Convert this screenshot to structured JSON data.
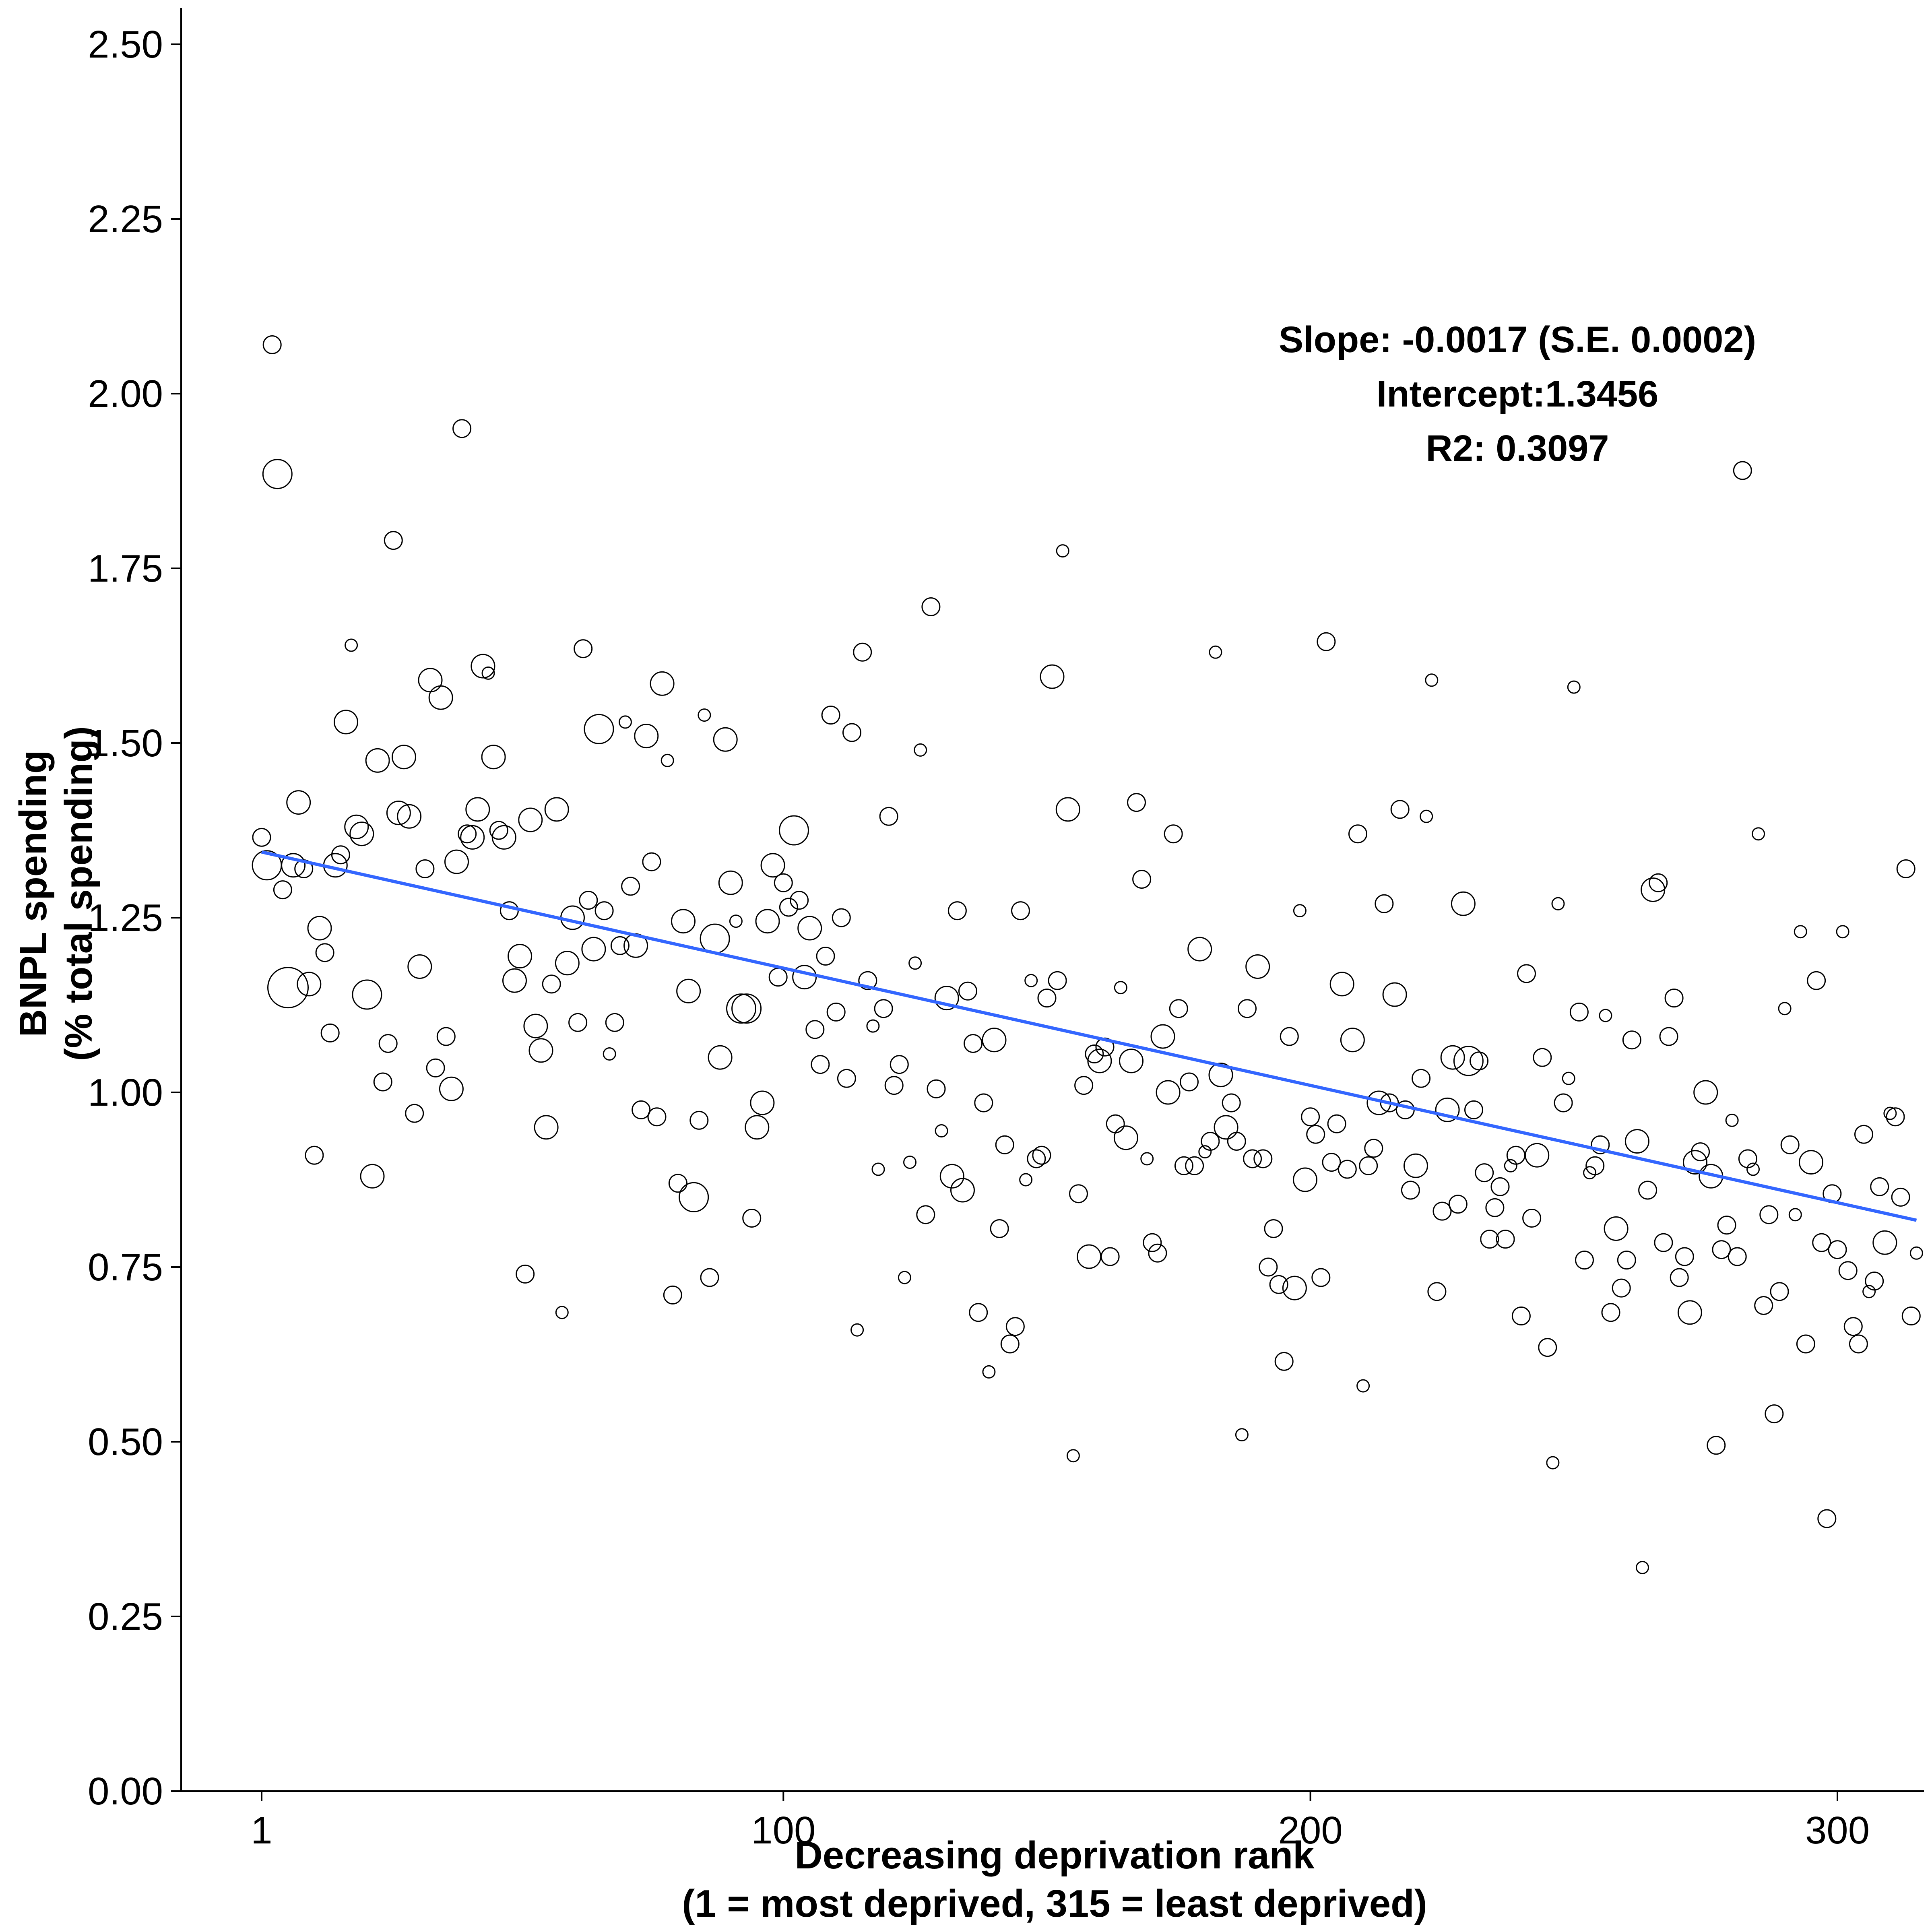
{
  "chart_data": {
    "type": "scatter",
    "title": "",
    "xlabel_lines": [
      "Decreasing deprivation rank",
      "(1 = most deprived, 315 = least deprived)"
    ],
    "ylabel_lines": [
      "BNPL spending",
      "(% total spending)"
    ],
    "xlim": [
      -15,
      330
    ],
    "ylim": [
      0,
      2.55
    ],
    "x_ticks": [
      1,
      100,
      200,
      300
    ],
    "x_tick_labels": [
      "1",
      "100",
      "200",
      "300"
    ],
    "y_ticks": [
      0,
      0.25,
      0.5,
      0.75,
      1.0,
      1.25,
      1.5,
      1.75,
      2.0,
      2.25,
      2.5
    ],
    "y_tick_labels": [
      "0.00",
      "0.25",
      "0.50",
      "0.75",
      "1.00",
      "1.25",
      "1.50",
      "1.75",
      "2.00",
      "2.25",
      "2.50"
    ],
    "grid": false,
    "legend": "none",
    "annotations": [
      "Slope: -0.0017 (S.E. 0.0002)",
      "Intercept:1.3456",
      "R2: 0.3097"
    ],
    "fit_line": {
      "x": [
        1,
        315
      ],
      "y": [
        1.344,
        0.817
      ],
      "color": "#3366FF"
    },
    "marker": {
      "fill": "none",
      "stroke": "#000000"
    },
    "points": [
      [
        1,
        1.365,
        2
      ],
      [
        2,
        1.325,
        4
      ],
      [
        3,
        2.07,
        2
      ],
      [
        4,
        1.885,
        4
      ],
      [
        5,
        1.29,
        2
      ],
      [
        6,
        1.15,
        6
      ],
      [
        7,
        1.325,
        3
      ],
      [
        8,
        1.415,
        3
      ],
      [
        9,
        1.32,
        2
      ],
      [
        10,
        1.155,
        3
      ],
      [
        11,
        0.91,
        2
      ],
      [
        12,
        1.235,
        3
      ],
      [
        13,
        1.2,
        2
      ],
      [
        14,
        1.085,
        2
      ],
      [
        15,
        1.325,
        3
      ],
      [
        16,
        1.34,
        2
      ],
      [
        17,
        1.53,
        3
      ],
      [
        18,
        1.64,
        1
      ],
      [
        19,
        1.38,
        3
      ],
      [
        20,
        1.37,
        3
      ],
      [
        21,
        1.14,
        4
      ],
      [
        22,
        0.88,
        3
      ],
      [
        23,
        1.475,
        3
      ],
      [
        24,
        1.015,
        2
      ],
      [
        25,
        1.07,
        2
      ],
      [
        26,
        1.79,
        2
      ],
      [
        27,
        1.4,
        3
      ],
      [
        28,
        1.48,
        3
      ],
      [
        29,
        1.395,
        3
      ],
      [
        30,
        0.97,
        2
      ],
      [
        31,
        1.18,
        3
      ],
      [
        32,
        1.32,
        2
      ],
      [
        33,
        1.59,
        3
      ],
      [
        34,
        1.035,
        2
      ],
      [
        35,
        1.565,
        3
      ],
      [
        36,
        1.08,
        2
      ],
      [
        37,
        1.005,
        3
      ],
      [
        38,
        1.33,
        3
      ],
      [
        39,
        1.95,
        2
      ],
      [
        40,
        1.37,
        2
      ],
      [
        41,
        1.365,
        3
      ],
      [
        42,
        1.405,
        3
      ],
      [
        43,
        1.61,
        3
      ],
      [
        44,
        1.6,
        1
      ],
      [
        45,
        1.48,
        3
      ],
      [
        46,
        1.375,
        2
      ],
      [
        47,
        1.365,
        3
      ],
      [
        48,
        1.26,
        2
      ],
      [
        49,
        1.16,
        3
      ],
      [
        50,
        1.195,
        3
      ],
      [
        51,
        0.74,
        2
      ],
      [
        52,
        1.39,
        3
      ],
      [
        53,
        1.095,
        3
      ],
      [
        54,
        1.06,
        3
      ],
      [
        55,
        0.95,
        3
      ],
      [
        56,
        1.155,
        2
      ],
      [
        57,
        1.405,
        3
      ],
      [
        58,
        0.685,
        1
      ],
      [
        59,
        1.185,
        3
      ],
      [
        60,
        1.25,
        3
      ],
      [
        61,
        1.1,
        2
      ],
      [
        62,
        1.635,
        2
      ],
      [
        63,
        1.275,
        2
      ],
      [
        64,
        1.205,
        3
      ],
      [
        65,
        1.52,
        4
      ],
      [
        66,
        1.26,
        2
      ],
      [
        67,
        1.055,
        1
      ],
      [
        68,
        1.1,
        2
      ],
      [
        69,
        1.21,
        2
      ],
      [
        70,
        1.53,
        1
      ],
      [
        71,
        1.295,
        2
      ],
      [
        72,
        1.21,
        3
      ],
      [
        73,
        0.975,
        2
      ],
      [
        74,
        1.51,
        3
      ],
      [
        75,
        1.33,
        2
      ],
      [
        76,
        0.965,
        2
      ],
      [
        77,
        1.585,
        3
      ],
      [
        78,
        1.475,
        1
      ],
      [
        79,
        0.71,
        2
      ],
      [
        80,
        0.87,
        2
      ],
      [
        81,
        1.245,
        3
      ],
      [
        82,
        1.145,
        3
      ],
      [
        83,
        0.85,
        4
      ],
      [
        84,
        0.96,
        2
      ],
      [
        85,
        1.54,
        1
      ],
      [
        86,
        0.735,
        2
      ],
      [
        87,
        1.22,
        4
      ],
      [
        88,
        1.05,
        3
      ],
      [
        89,
        1.505,
        3
      ],
      [
        90,
        1.3,
        3
      ],
      [
        91,
        1.245,
        1
      ],
      [
        92,
        1.12,
        4
      ],
      [
        93,
        1.12,
        4
      ],
      [
        94,
        0.82,
        2
      ],
      [
        95,
        0.95,
        3
      ],
      [
        96,
        0.985,
        3
      ],
      [
        97,
        1.245,
        3
      ],
      [
        98,
        1.325,
        3
      ],
      [
        99,
        1.165,
        2
      ],
      [
        100,
        1.3,
        2
      ],
      [
        101,
        1.265,
        2
      ],
      [
        102,
        1.375,
        4
      ],
      [
        103,
        1.275,
        2
      ],
      [
        104,
        1.165,
        3
      ],
      [
        105,
        1.235,
        3
      ],
      [
        106,
        1.09,
        2
      ],
      [
        107,
        1.04,
        2
      ],
      [
        108,
        1.195,
        2
      ],
      [
        109,
        1.54,
        2
      ],
      [
        110,
        1.115,
        2
      ],
      [
        111,
        1.25,
        2
      ],
      [
        112,
        1.02,
        2
      ],
      [
        113,
        1.515,
        2
      ],
      [
        114,
        0.66,
        1
      ],
      [
        115,
        1.63,
        2
      ],
      [
        116,
        1.16,
        2
      ],
      [
        117,
        1.095,
        1
      ],
      [
        118,
        0.89,
        1
      ],
      [
        119,
        1.12,
        2
      ],
      [
        120,
        1.395,
        2
      ],
      [
        121,
        1.01,
        2
      ],
      [
        122,
        1.04,
        2
      ],
      [
        123,
        0.735,
        1
      ],
      [
        124,
        0.9,
        1
      ],
      [
        125,
        1.185,
        1
      ],
      [
        126,
        1.49,
        1
      ],
      [
        127,
        0.825,
        2
      ],
      [
        128,
        1.695,
        2
      ],
      [
        129,
        1.005,
        2
      ],
      [
        130,
        0.945,
        1
      ],
      [
        131,
        1.135,
        3
      ],
      [
        132,
        0.88,
        3
      ],
      [
        133,
        1.26,
        2
      ],
      [
        134,
        0.86,
        3
      ],
      [
        135,
        1.145,
        2
      ],
      [
        136,
        1.07,
        2
      ],
      [
        137,
        0.685,
        2
      ],
      [
        138,
        0.985,
        2
      ],
      [
        139,
        0.6,
        1
      ],
      [
        140,
        1.075,
        3
      ],
      [
        141,
        0.805,
        2
      ],
      [
        142,
        0.925,
        2
      ],
      [
        143,
        0.64,
        2
      ],
      [
        144,
        0.665,
        2
      ],
      [
        145,
        1.26,
        2
      ],
      [
        146,
        0.875,
        1
      ],
      [
        147,
        1.16,
        1
      ],
      [
        148,
        0.905,
        2
      ],
      [
        149,
        0.91,
        2
      ],
      [
        150,
        1.135,
        2
      ],
      [
        151,
        1.595,
        3
      ],
      [
        152,
        1.16,
        2
      ],
      [
        153,
        1.775,
        1
      ],
      [
        154,
        1.405,
        3
      ],
      [
        155,
        0.48,
        1
      ],
      [
        156,
        0.855,
        2
      ],
      [
        157,
        1.01,
        2
      ],
      [
        158,
        0.765,
        3
      ],
      [
        159,
        1.055,
        2
      ],
      [
        160,
        1.045,
        3
      ],
      [
        161,
        1.065,
        2
      ],
      [
        162,
        0.765,
        2
      ],
      [
        163,
        0.955,
        2
      ],
      [
        164,
        1.15,
        1
      ],
      [
        165,
        0.935,
        3
      ],
      [
        166,
        1.045,
        3
      ],
      [
        167,
        1.415,
        2
      ],
      [
        168,
        1.305,
        2
      ],
      [
        169,
        0.905,
        1
      ],
      [
        170,
        0.785,
        2
      ],
      [
        171,
        0.77,
        2
      ],
      [
        172,
        1.08,
        3
      ],
      [
        173,
        1.0,
        3
      ],
      [
        174,
        1.37,
        2
      ],
      [
        175,
        1.12,
        2
      ],
      [
        176,
        0.895,
        2
      ],
      [
        177,
        1.015,
        2
      ],
      [
        178,
        0.895,
        2
      ],
      [
        179,
        1.205,
        3
      ],
      [
        180,
        0.915,
        1
      ],
      [
        181,
        0.93,
        2
      ],
      [
        182,
        1.63,
        1
      ],
      [
        183,
        1.025,
        3
      ],
      [
        184,
        0.95,
        3
      ],
      [
        185,
        0.985,
        2
      ],
      [
        186,
        0.93,
        2
      ],
      [
        187,
        0.51,
        1
      ],
      [
        188,
        1.12,
        2
      ],
      [
        189,
        0.905,
        2
      ],
      [
        190,
        1.18,
        3
      ],
      [
        191,
        0.905,
        2
      ],
      [
        192,
        0.75,
        2
      ],
      [
        193,
        0.805,
        2
      ],
      [
        194,
        0.725,
        2
      ],
      [
        195,
        0.615,
        2
      ],
      [
        196,
        1.08,
        2
      ],
      [
        197,
        0.72,
        3
      ],
      [
        198,
        1.26,
        1
      ],
      [
        199,
        0.875,
        3
      ],
      [
        200,
        0.965,
        2
      ],
      [
        201,
        0.94,
        2
      ],
      [
        202,
        0.735,
        2
      ],
      [
        203,
        1.645,
        2
      ],
      [
        204,
        0.9,
        2
      ],
      [
        205,
        0.955,
        2
      ],
      [
        206,
        1.155,
        3
      ],
      [
        207,
        0.89,
        2
      ],
      [
        208,
        1.075,
        3
      ],
      [
        209,
        1.37,
        2
      ],
      [
        210,
        0.58,
        1
      ],
      [
        211,
        0.895,
        2
      ],
      [
        212,
        0.92,
        2
      ],
      [
        213,
        0.985,
        3
      ],
      [
        214,
        1.27,
        2
      ],
      [
        215,
        0.985,
        2
      ],
      [
        216,
        1.14,
        3
      ],
      [
        217,
        1.405,
        2
      ],
      [
        218,
        0.975,
        2
      ],
      [
        219,
        0.86,
        2
      ],
      [
        220,
        0.895,
        3
      ],
      [
        221,
        1.02,
        2
      ],
      [
        222,
        1.395,
        1
      ],
      [
        223,
        1.59,
        1
      ],
      [
        224,
        0.715,
        2
      ],
      [
        225,
        0.83,
        2
      ],
      [
        226,
        0.975,
        3
      ],
      [
        227,
        1.05,
        3
      ],
      [
        228,
        0.84,
        2
      ],
      [
        229,
        1.27,
        3
      ],
      [
        230,
        1.045,
        4
      ],
      [
        231,
        0.975,
        2
      ],
      [
        232,
        1.045,
        2
      ],
      [
        233,
        0.885,
        2
      ],
      [
        234,
        0.79,
        2
      ],
      [
        235,
        0.835,
        2
      ],
      [
        236,
        0.865,
        2
      ],
      [
        237,
        0.79,
        2
      ],
      [
        238,
        0.895,
        1
      ],
      [
        239,
        0.91,
        2
      ],
      [
        240,
        0.68,
        2
      ],
      [
        241,
        1.17,
        2
      ],
      [
        242,
        0.82,
        2
      ],
      [
        243,
        0.91,
        3
      ],
      [
        244,
        1.05,
        2
      ],
      [
        245,
        0.635,
        2
      ],
      [
        246,
        0.47,
        1
      ],
      [
        247,
        1.27,
        1
      ],
      [
        248,
        0.985,
        2
      ],
      [
        249,
        1.02,
        1
      ],
      [
        250,
        1.58,
        1
      ],
      [
        251,
        1.115,
        2
      ],
      [
        252,
        0.76,
        2
      ],
      [
        253,
        0.885,
        1
      ],
      [
        254,
        0.895,
        2
      ],
      [
        255,
        0.925,
        2
      ],
      [
        256,
        1.11,
        1
      ],
      [
        257,
        0.685,
        2
      ],
      [
        258,
        0.805,
        3
      ],
      [
        259,
        0.72,
        2
      ],
      [
        260,
        0.76,
        2
      ],
      [
        261,
        1.075,
        2
      ],
      [
        262,
        0.93,
        3
      ],
      [
        263,
        0.32,
        1
      ],
      [
        264,
        0.86,
        2
      ],
      [
        265,
        1.29,
        3
      ],
      [
        266,
        1.3,
        2
      ],
      [
        267,
        0.785,
        2
      ],
      [
        268,
        1.08,
        2
      ],
      [
        269,
        1.135,
        2
      ],
      [
        270,
        0.735,
        2
      ],
      [
        271,
        0.765,
        2
      ],
      [
        272,
        0.685,
        3
      ],
      [
        273,
        0.9,
        3
      ],
      [
        274,
        0.915,
        2
      ],
      [
        275,
        1.0,
        3
      ],
      [
        276,
        0.88,
        3
      ],
      [
        277,
        0.495,
        2
      ],
      [
        278,
        0.775,
        2
      ],
      [
        279,
        0.81,
        2
      ],
      [
        280,
        0.96,
        1
      ],
      [
        281,
        0.765,
        2
      ],
      [
        282,
        1.89,
        2
      ],
      [
        283,
        0.905,
        2
      ],
      [
        284,
        0.89,
        1
      ],
      [
        285,
        1.37,
        1
      ],
      [
        286,
        0.695,
        2
      ],
      [
        287,
        0.825,
        2
      ],
      [
        288,
        0.54,
        2
      ],
      [
        289,
        0.715,
        2
      ],
      [
        290,
        1.12,
        1
      ],
      [
        291,
        0.925,
        2
      ],
      [
        292,
        0.825,
        1
      ],
      [
        293,
        1.23,
        1
      ],
      [
        294,
        0.64,
        2
      ],
      [
        295,
        0.9,
        3
      ],
      [
        296,
        1.16,
        2
      ],
      [
        297,
        0.785,
        2
      ],
      [
        298,
        0.39,
        2
      ],
      [
        299,
        0.855,
        2
      ],
      [
        300,
        0.775,
        2
      ],
      [
        301,
        1.23,
        1
      ],
      [
        302,
        0.745,
        2
      ],
      [
        303,
        0.665,
        2
      ],
      [
        304,
        0.64,
        2
      ],
      [
        305,
        0.94,
        2
      ],
      [
        306,
        0.715,
        1
      ],
      [
        307,
        0.73,
        2
      ],
      [
        308,
        0.865,
        2
      ],
      [
        309,
        0.785,
        3
      ],
      [
        310,
        0.97,
        1
      ],
      [
        311,
        0.965,
        2
      ],
      [
        312,
        0.85,
        2
      ],
      [
        313,
        1.32,
        2
      ],
      [
        314,
        0.68,
        2
      ],
      [
        315,
        0.77,
        1
      ]
    ]
  }
}
